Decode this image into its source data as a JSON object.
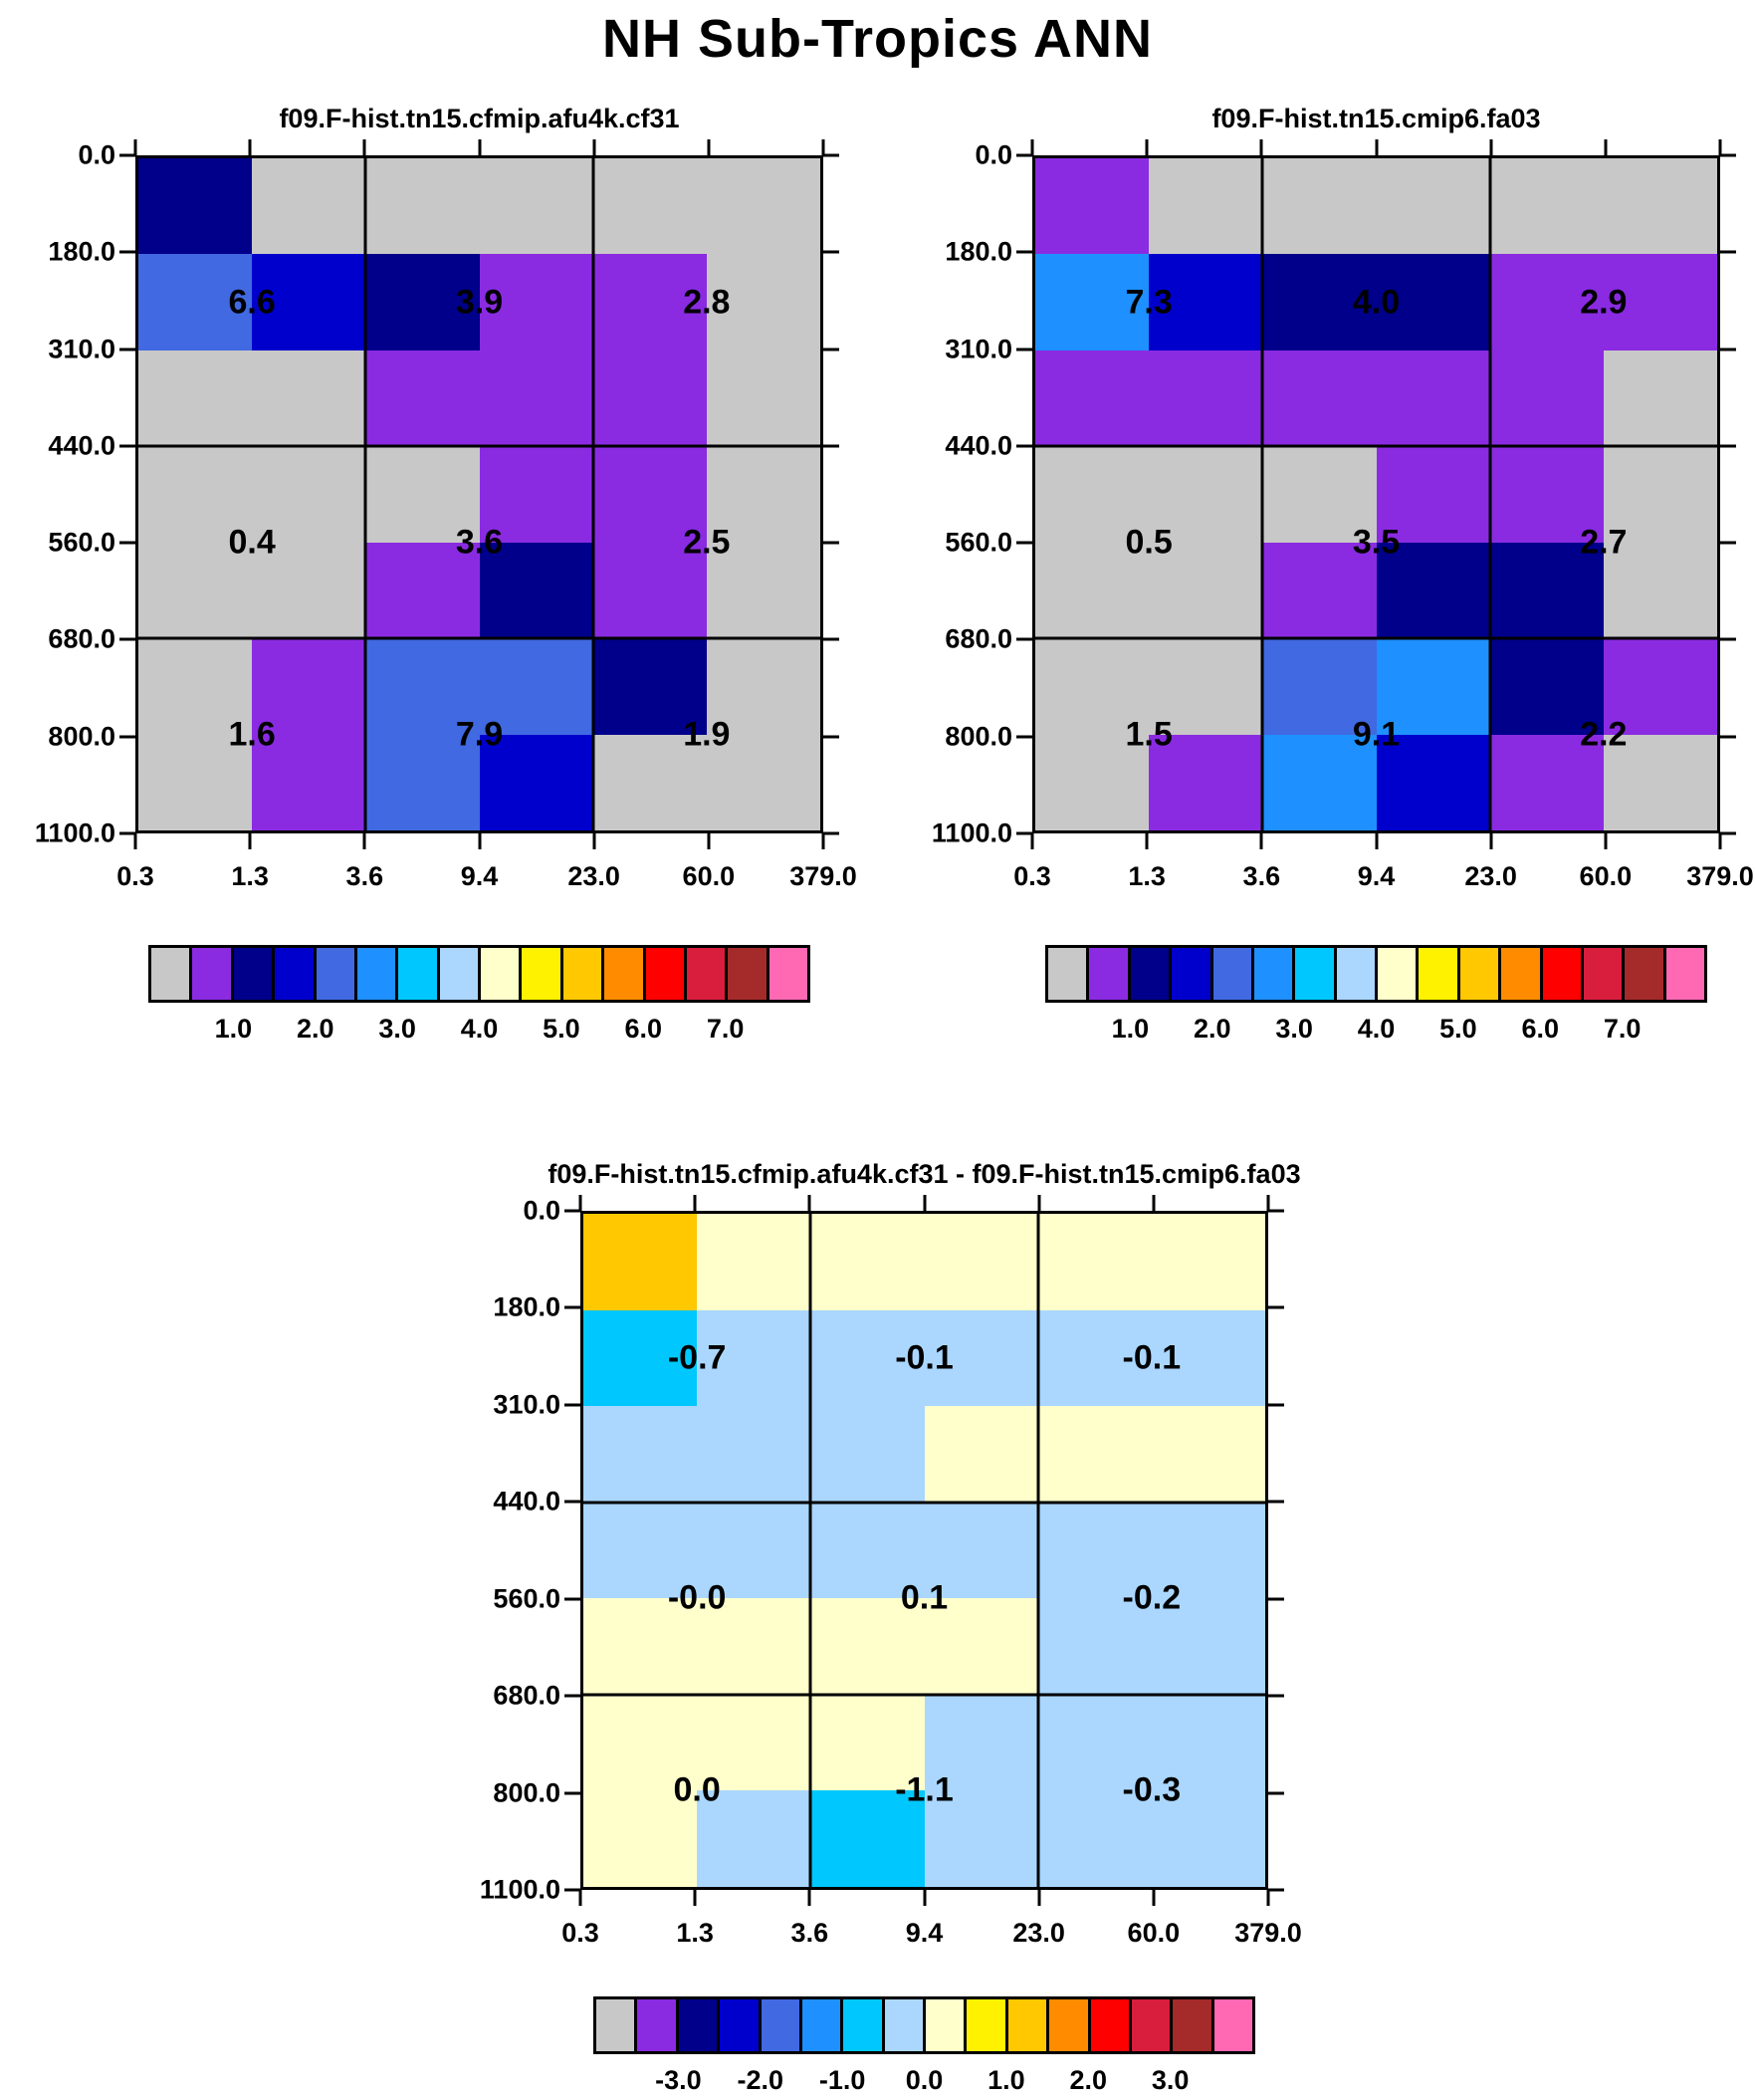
{
  "title": "NH Sub-Tropics ANN",
  "palette": {
    "gray": "#c8c8c8",
    "purple": "#8a2be2",
    "navy": "#00008b",
    "blue": "#0000cd",
    "royal": "#4169e1",
    "dodger": "#1e90ff",
    "cyan": "#00c8ff",
    "lightblue": "#abd7ff",
    "cream": "#ffffcc",
    "yellow": "#fff200",
    "gold": "#ffc800",
    "orange": "#ff8c00",
    "red": "#ff0000",
    "crimson": "#d81e3c",
    "brick": "#a52a2a",
    "pink": "#ff69b4"
  },
  "colorbar_sequence": [
    "gray",
    "purple",
    "navy",
    "blue",
    "royal",
    "dodger",
    "cyan",
    "lightblue",
    "cream",
    "yellow",
    "gold",
    "orange",
    "red",
    "crimson",
    "brick",
    "pink"
  ],
  "chart_data": [
    {
      "type": "heatmap",
      "title": "f09.F-hist.tn15.cfmip.afu4k.cf31",
      "x_ticks": [
        "0.3",
        "1.3",
        "3.6",
        "9.4",
        "23.0",
        "60.0",
        "379.0"
      ],
      "y_ticks": [
        "0.0",
        "180.0",
        "310.0",
        "440.0",
        "560.0",
        "680.0",
        "800.0",
        "1100.0"
      ],
      "cells": [
        [
          "navy",
          "gray",
          "gray",
          "gray",
          "gray",
          "gray"
        ],
        [
          "royal",
          "blue",
          "navy",
          "purple",
          "purple",
          "gray"
        ],
        [
          "gray",
          "gray",
          "purple",
          "purple",
          "purple",
          "gray"
        ],
        [
          "gray",
          "gray",
          "gray",
          "purple",
          "purple",
          "gray"
        ],
        [
          "gray",
          "gray",
          "purple",
          "navy",
          "purple",
          "gray"
        ],
        [
          "gray",
          "purple",
          "royal",
          "royal",
          "navy",
          "gray"
        ],
        [
          "gray",
          "purple",
          "royal",
          "blue",
          "gray",
          "gray"
        ]
      ],
      "region_labels": [
        [
          "6.6",
          "3.9",
          "2.8"
        ],
        [
          "0.4",
          "3.6",
          "2.5"
        ],
        [
          "1.6",
          "7.9",
          "1.9"
        ]
      ],
      "colorbar_labels": [
        "1.0",
        "2.0",
        "3.0",
        "4.0",
        "5.0",
        "6.0",
        "7.0"
      ]
    },
    {
      "type": "heatmap",
      "title": "f09.F-hist.tn15.cmip6.fa03",
      "x_ticks": [
        "0.3",
        "1.3",
        "3.6",
        "9.4",
        "23.0",
        "60.0",
        "379.0"
      ],
      "y_ticks": [
        "0.0",
        "180.0",
        "310.0",
        "440.0",
        "560.0",
        "680.0",
        "800.0",
        "1100.0"
      ],
      "cells": [
        [
          "purple",
          "gray",
          "gray",
          "gray",
          "gray",
          "gray"
        ],
        [
          "dodger",
          "blue",
          "navy",
          "navy",
          "purple",
          "purple"
        ],
        [
          "purple",
          "purple",
          "purple",
          "purple",
          "purple",
          "gray"
        ],
        [
          "gray",
          "gray",
          "gray",
          "purple",
          "purple",
          "gray"
        ],
        [
          "gray",
          "gray",
          "purple",
          "navy",
          "navy",
          "gray"
        ],
        [
          "gray",
          "gray",
          "royal",
          "dodger",
          "navy",
          "purple"
        ],
        [
          "gray",
          "purple",
          "dodger",
          "blue",
          "purple",
          "gray"
        ]
      ],
      "region_labels": [
        [
          "7.3",
          "4.0",
          "2.9"
        ],
        [
          "0.5",
          "3.5",
          "2.7"
        ],
        [
          "1.5",
          "9.1",
          "2.2"
        ]
      ],
      "colorbar_labels": [
        "1.0",
        "2.0",
        "3.0",
        "4.0",
        "5.0",
        "6.0",
        "7.0"
      ]
    },
    {
      "type": "heatmap",
      "title": "f09.F-hist.tn15.cfmip.afu4k.cf31 - f09.F-hist.tn15.cmip6.fa03",
      "x_ticks": [
        "0.3",
        "1.3",
        "3.6",
        "9.4",
        "23.0",
        "60.0",
        "379.0"
      ],
      "y_ticks": [
        "0.0",
        "180.0",
        "310.0",
        "440.0",
        "560.0",
        "680.0",
        "800.0",
        "1100.0"
      ],
      "cells": [
        [
          "gold",
          "cream",
          "cream",
          "cream",
          "cream",
          "cream"
        ],
        [
          "cyan",
          "lightblue",
          "lightblue",
          "lightblue",
          "lightblue",
          "lightblue"
        ],
        [
          "lightblue",
          "lightblue",
          "lightblue",
          "cream",
          "cream",
          "cream"
        ],
        [
          "lightblue",
          "lightblue",
          "lightblue",
          "lightblue",
          "lightblue",
          "lightblue"
        ],
        [
          "cream",
          "cream",
          "cream",
          "cream",
          "lightblue",
          "lightblue"
        ],
        [
          "cream",
          "cream",
          "cream",
          "lightblue",
          "lightblue",
          "lightblue"
        ],
        [
          "cream",
          "lightblue",
          "cyan",
          "lightblue",
          "lightblue",
          "lightblue"
        ]
      ],
      "region_labels": [
        [
          "-0.7",
          "-0.1",
          "-0.1"
        ],
        [
          "-0.0",
          "0.1",
          "-0.2"
        ],
        [
          "0.0",
          "-1.1",
          "-0.3"
        ]
      ],
      "colorbar_labels": [
        "-3.0",
        "-2.0",
        "-1.0",
        "0.0",
        "1.0",
        "2.0",
        "3.0"
      ]
    }
  ]
}
